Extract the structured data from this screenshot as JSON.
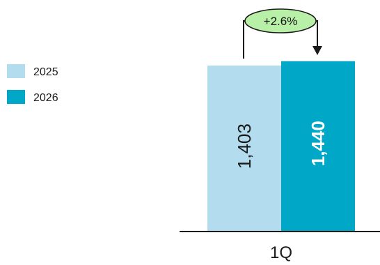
{
  "chart_data": {
    "type": "bar",
    "categories": [
      "1Q"
    ],
    "series": [
      {
        "name": "2025",
        "values": [
          1403
        ],
        "color": "#b3dcef",
        "label_color": "#1a1a1a",
        "label_bold": false
      },
      {
        "name": "2026",
        "values": [
          1440
        ],
        "color": "#00a7c7",
        "label_color": "#ffffff",
        "label_bold": true
      }
    ],
    "data_labels": [
      "1,403",
      "1,440"
    ],
    "change_annotation": {
      "text": "+2.6%",
      "fill": "#b9f0a8",
      "stroke": "#1a1a1a"
    },
    "axis_color": "#1a1a1a",
    "legend_position": "left",
    "title": "",
    "xlabel": "",
    "ylabel": ""
  }
}
